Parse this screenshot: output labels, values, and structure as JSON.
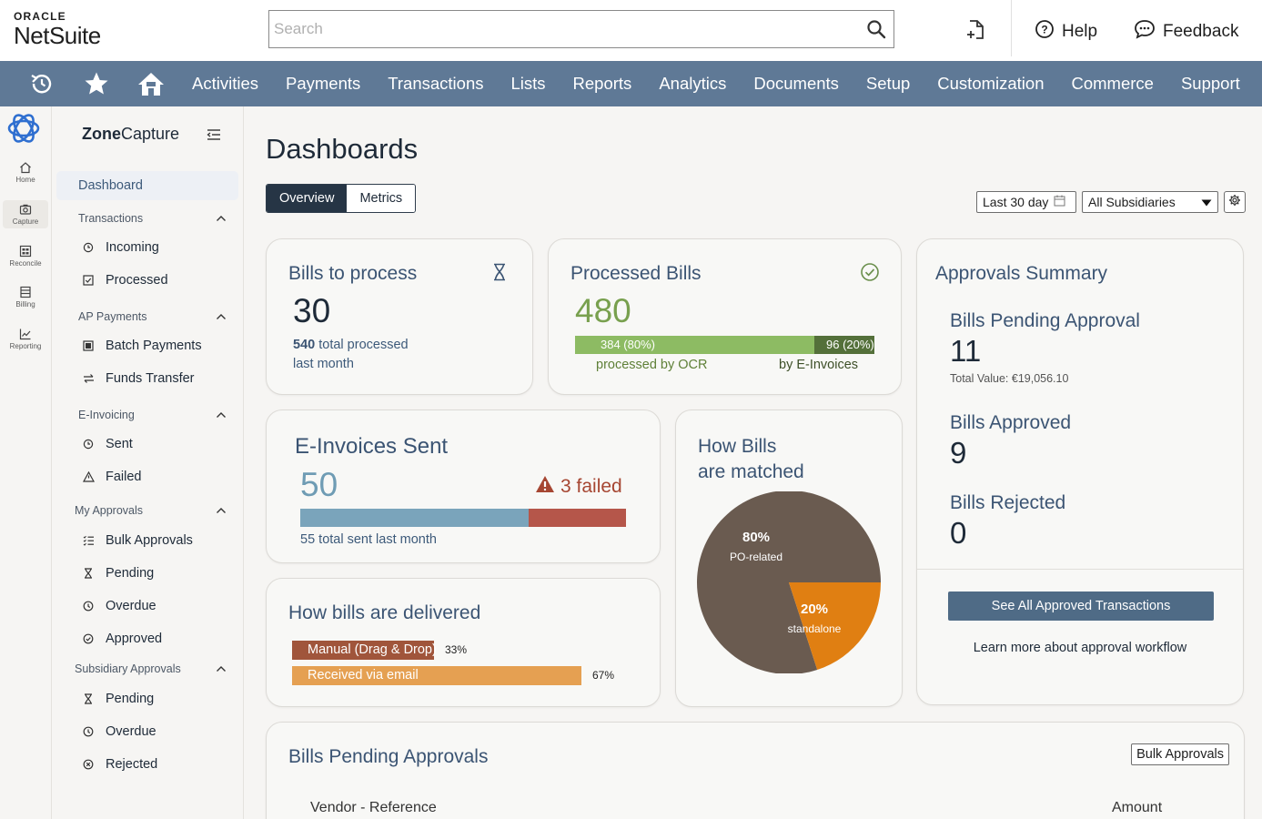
{
  "brand": {
    "oracle": "ORACLE",
    "netsuite": "NetSuite"
  },
  "header": {
    "search_placeholder": "Search",
    "help": "Help",
    "feedback": "Feedback"
  },
  "nav": {
    "items": [
      "Activities",
      "Payments",
      "Transactions",
      "Lists",
      "Reports",
      "Analytics",
      "Documents",
      "Setup",
      "Customization",
      "Commerce",
      "Support"
    ]
  },
  "rail": {
    "items": [
      "Home",
      "Capture",
      "Reconcile",
      "Billing",
      "Reporting"
    ]
  },
  "sidebar": {
    "app_bold": "Zone",
    "app_rest": "Capture",
    "dashboard": "Dashboard",
    "transactions": {
      "title": "Transactions",
      "items": [
        "Incoming",
        "Processed"
      ]
    },
    "ap_payments": {
      "title": "AP Payments",
      "items": [
        "Batch Payments",
        "Funds Transfer"
      ]
    },
    "e_invoicing": {
      "title": "E-Invoicing",
      "items": [
        "Sent",
        "Failed"
      ]
    },
    "my_approvals": {
      "title": "My Approvals",
      "items": [
        "Bulk Approvals",
        "Pending",
        "Overdue",
        "Approved"
      ]
    },
    "subsidiary_approvals": {
      "title": "Subsidiary Approvals",
      "items": [
        "Pending",
        "Overdue",
        "Rejected"
      ]
    }
  },
  "main": {
    "title": "Dashboards",
    "tabs": [
      "Overview",
      "Metrics"
    ],
    "date_filter": "Last 30 day",
    "subsidiary_filter": "All Subsidiaries"
  },
  "bills_to_process": {
    "title": "Bills to process",
    "count": "30",
    "total_num": "540",
    "total_text": "total processed",
    "total_text2": "last month"
  },
  "processed_bills": {
    "title": "Processed Bills",
    "count": "480",
    "ocr_value": "384 (80%)",
    "einv_value": "96 (20%)",
    "ocr_fraction": 0.8,
    "ocr_label": "processed by OCR",
    "einv_label": "by E-Invoices"
  },
  "einvoices_sent": {
    "title": "E-Invoices Sent",
    "count": "50",
    "failed": "3 failed",
    "sent_fraction": 0.7,
    "total_num": "55",
    "total_text": "total sent last month"
  },
  "bills_delivered": {
    "title": "How bills are delivered",
    "rows": [
      {
        "label": "Manual (Drag & Drop)",
        "pct": "33%",
        "value": 33,
        "color": "#a0553b"
      },
      {
        "label": "Received via email",
        "pct": "67%",
        "value": 67,
        "color": "#e5a052"
      }
    ]
  },
  "how_matched": {
    "title_line1": "How Bills",
    "title_line2": "are matched",
    "slices": [
      {
        "pct": "80%",
        "label": "PO-related",
        "value": 80,
        "color": "#6a5b50"
      },
      {
        "pct": "20%",
        "label": "standalone",
        "value": 20,
        "color": "#e07f12"
      }
    ]
  },
  "approvals_summary": {
    "title": "Approvals Summary",
    "pending_label": "Bills Pending Approval",
    "pending_count": "11",
    "pending_total": "Total Value: €19,056.10",
    "approved_label": "Bills Approved",
    "approved_count": "9",
    "rejected_label": "Bills Rejected",
    "rejected_count": "0",
    "see_all": "See All Approved Transactions",
    "learn_more": "Learn more about approval workflow"
  },
  "pending_approvals": {
    "title": "Bills Pending Approvals",
    "bulk_button": "Bulk Approvals",
    "col_vendor": "Vendor - Reference",
    "col_amount": "Amount"
  }
}
